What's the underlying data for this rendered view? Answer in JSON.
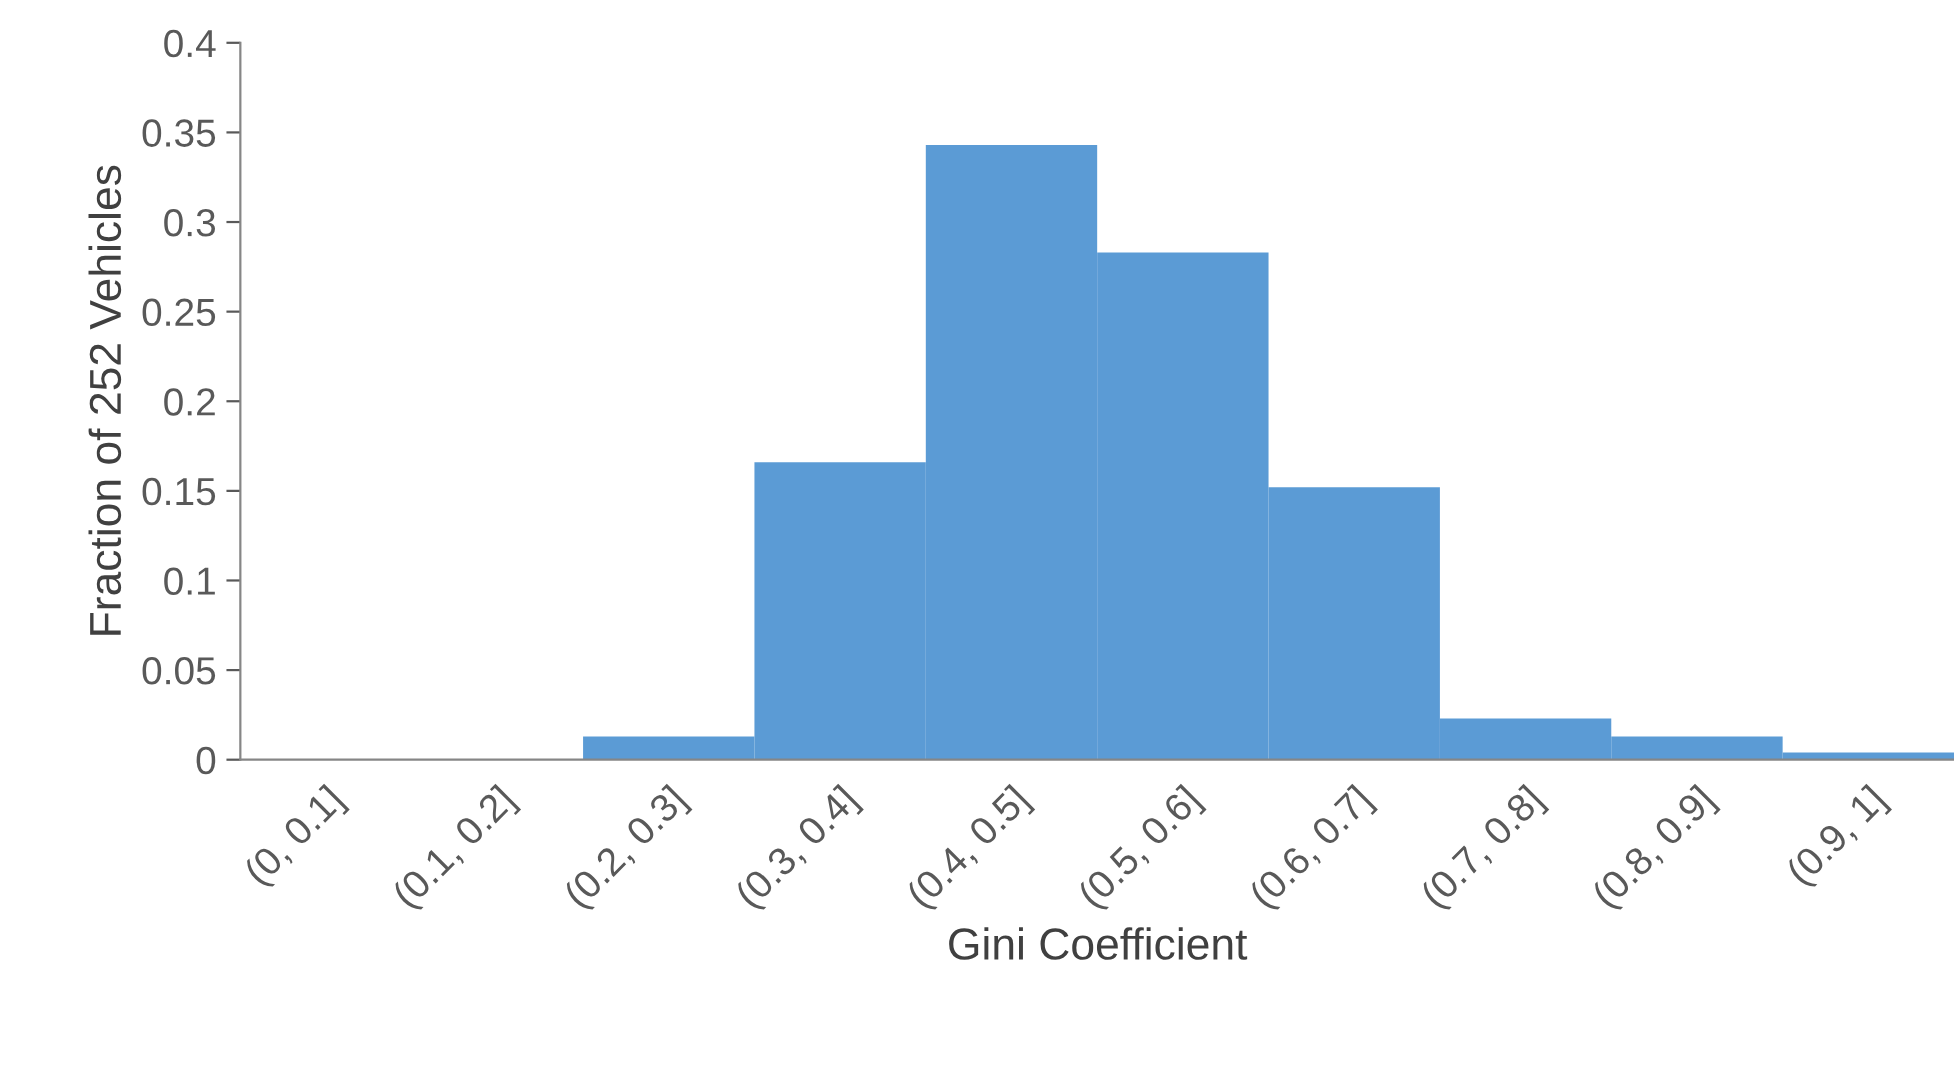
{
  "chart_data": {
    "type": "bar",
    "xlabel": "Gini Coefficient",
    "ylabel": "Fraction of 252 Vehicles",
    "categories": [
      "(0, 0.1]",
      "(0.1, 0.2]",
      "(0.2, 0.3]",
      "(0.3, 0.4]",
      "(0.4, 0.5]",
      "(0.5, 0.6]",
      "(0.6, 0.7]",
      "(0.7, 0.8]",
      "(0.8, 0.9]",
      "(0.9, 1]"
    ],
    "values": [
      0,
      0,
      0.013,
      0.166,
      0.343,
      0.283,
      0.152,
      0.023,
      0.013,
      0.004
    ],
    "color": "#5b9bd5",
    "ylim": [
      0,
      0.4
    ],
    "yticks": [
      0,
      0.05,
      0.1,
      0.15,
      0.2,
      0.25,
      0.3,
      0.35,
      0.4
    ],
    "grid": false
  }
}
